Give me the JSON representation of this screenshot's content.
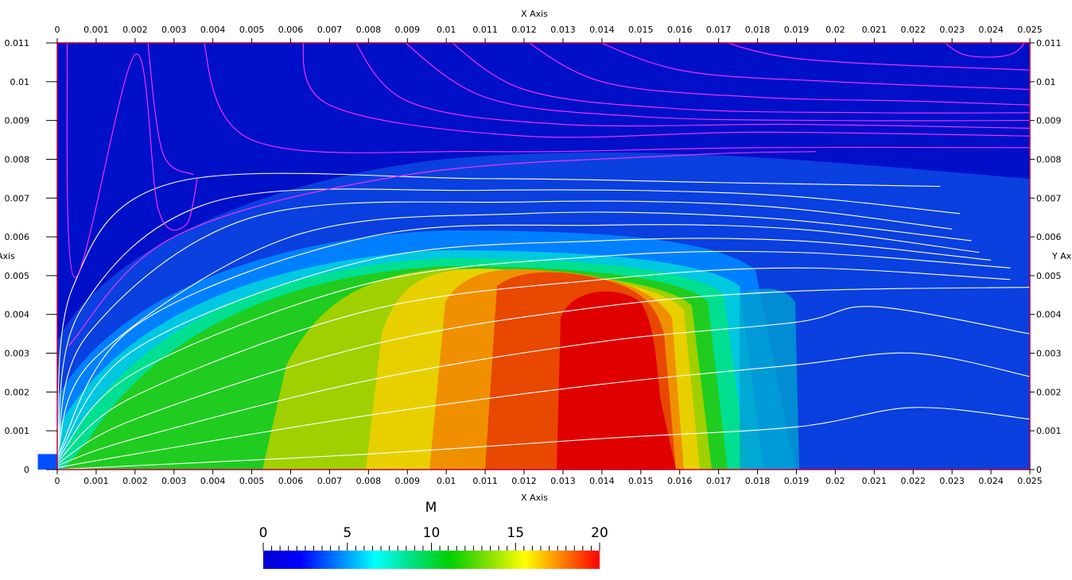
{
  "chart_data": {
    "type": "heatmap",
    "title": "",
    "x_axis": {
      "label": "X Axis",
      "range": [
        0,
        0.025
      ],
      "ticks": [
        "0",
        "0.001",
        "0.002",
        "0.003",
        "0.004",
        "0.005",
        "0.006",
        "0.007",
        "0.008",
        "0.009",
        "0.01",
        "0.011",
        "0.012",
        "0.013",
        "0.014",
        "0.015",
        "0.016",
        "0.017",
        "0.018",
        "0.019",
        "0.02",
        "0.021",
        "0.022",
        "0.023",
        "0.024",
        "0.025"
      ]
    },
    "y_axis": {
      "label_left": "Axis",
      "label_right": "Y Ax",
      "range": [
        0,
        0.011
      ],
      "ticks": [
        "0",
        "0.001",
        "0.002",
        "0.003",
        "0.004",
        "0.005",
        "0.006",
        "0.007",
        "0.008",
        "0.009",
        "0.01",
        "0.011"
      ]
    },
    "inlet": {
      "x_min": -0.0005,
      "x_max": 0,
      "y_max": 0.0004
    },
    "colorbar": {
      "title": "M",
      "range": [
        0,
        20
      ],
      "tick_labels": [
        "0",
        "5",
        "10",
        "15",
        "20"
      ],
      "tick_values": [
        0,
        5,
        10,
        15,
        20
      ],
      "colors": [
        "#0000d0",
        "#0000ff",
        "#0080ff",
        "#00ffff",
        "#00e080",
        "#00d000",
        "#80e000",
        "#ffff00",
        "#ff8000",
        "#ff0000"
      ]
    },
    "field_peak_M": 20,
    "streamlines_white": [
      [
        [
          0,
          0
        ],
        [
          0.002,
          0.0001
        ],
        [
          0.008,
          0.0004
        ],
        [
          0.014,
          0.0008
        ],
        [
          0.019,
          0.0011
        ],
        [
          0.022,
          0.0016
        ],
        [
          0.025,
          0.0013
        ]
      ],
      [
        [
          0,
          5e-05
        ],
        [
          0.002,
          0.0004
        ],
        [
          0.008,
          0.0014
        ],
        [
          0.014,
          0.0022
        ],
        [
          0.019,
          0.0027
        ],
        [
          0.022,
          0.003
        ],
        [
          0.025,
          0.0024
        ]
      ],
      [
        [
          0,
          0.0001
        ],
        [
          0.002,
          0.0008
        ],
        [
          0.008,
          0.0023
        ],
        [
          0.014,
          0.0033
        ],
        [
          0.019,
          0.0038
        ],
        [
          0.021,
          0.0042
        ],
        [
          0.025,
          0.0035
        ]
      ],
      [
        [
          0,
          0.00015
        ],
        [
          0.002,
          0.0013
        ],
        [
          0.008,
          0.0032
        ],
        [
          0.014,
          0.0042
        ],
        [
          0.019,
          0.0046
        ],
        [
          0.025,
          0.0047
        ]
      ],
      [
        [
          0,
          0.0002
        ],
        [
          0.002,
          0.0019
        ],
        [
          0.008,
          0.0041
        ],
        [
          0.014,
          0.0049
        ],
        [
          0.019,
          0.0052
        ],
        [
          0.0245,
          0.0049
        ]
      ],
      [
        [
          0,
          0.00025
        ],
        [
          0.002,
          0.0025
        ],
        [
          0.008,
          0.0048
        ],
        [
          0.014,
          0.0055
        ],
        [
          0.019,
          0.0056
        ],
        [
          0.0245,
          0.0052
        ]
      ],
      [
        [
          0,
          0.0003
        ],
        [
          0.002,
          0.0031
        ],
        [
          0.008,
          0.0054
        ],
        [
          0.014,
          0.0059
        ],
        [
          0.019,
          0.0059
        ],
        [
          0.024,
          0.0054
        ]
      ],
      [
        [
          0,
          0.00035
        ],
        [
          0.002,
          0.0037
        ],
        [
          0.008,
          0.006
        ],
        [
          0.014,
          0.0063
        ],
        [
          0.019,
          0.0062
        ],
        [
          0.0237,
          0.0056
        ]
      ],
      [
        [
          0,
          0.0004
        ],
        [
          0.001,
          0.0029
        ],
        [
          0.006,
          0.006
        ],
        [
          0.012,
          0.0066
        ],
        [
          0.018,
          0.0065
        ],
        [
          0.0235,
          0.0059
        ]
      ],
      [
        [
          0,
          0.0004
        ],
        [
          0.0008,
          0.0035
        ],
        [
          0.005,
          0.0065
        ],
        [
          0.012,
          0.0069
        ],
        [
          0.018,
          0.0068
        ],
        [
          0.023,
          0.0062
        ]
      ],
      [
        [
          0,
          0.0004
        ],
        [
          0.0006,
          0.0041
        ],
        [
          0.004,
          0.0069
        ],
        [
          0.011,
          0.0072
        ],
        [
          0.018,
          0.0071
        ],
        [
          0.0232,
          0.0066
        ]
      ],
      [
        [
          0,
          0.0004
        ],
        [
          0.0004,
          0.0047
        ],
        [
          0.003,
          0.0074
        ],
        [
          0.011,
          0.0075
        ],
        [
          0.017,
          0.0074
        ],
        [
          0.0227,
          0.0073
        ]
      ]
    ],
    "streamlines_magenta": [
      [
        [
          0.0003,
          0.0032
        ],
        [
          0.003,
          0.006
        ],
        [
          0.009,
          0.0076
        ],
        [
          0.016,
          0.0081
        ],
        [
          0.0195,
          0.0082
        ]
      ],
      [
        [
          0.0037,
          0.0113
        ],
        [
          0.005,
          0.0085
        ],
        [
          0.011,
          0.0082
        ],
        [
          0.018,
          0.0083
        ],
        [
          0.025,
          0.0083
        ]
      ],
      [
        [
          0.0063,
          0.0113
        ],
        [
          0.007,
          0.0094
        ],
        [
          0.012,
          0.0086
        ],
        [
          0.018,
          0.0087
        ],
        [
          0.025,
          0.0086
        ]
      ],
      [
        [
          0.0075,
          0.0113
        ],
        [
          0.009,
          0.0095
        ],
        [
          0.013,
          0.0089
        ],
        [
          0.019,
          0.0089
        ],
        [
          0.025,
          0.0088
        ]
      ],
      [
        [
          0.0086,
          0.0113
        ],
        [
          0.011,
          0.0096
        ],
        [
          0.015,
          0.0091
        ],
        [
          0.02,
          0.009
        ],
        [
          0.025,
          0.009
        ]
      ],
      [
        [
          0.0098,
          0.0113
        ],
        [
          0.012,
          0.0098
        ],
        [
          0.016,
          0.0093
        ],
        [
          0.021,
          0.0092
        ],
        [
          0.025,
          0.0092
        ]
      ],
      [
        [
          0.0117,
          0.0113
        ],
        [
          0.014,
          0.01
        ],
        [
          0.018,
          0.0096
        ],
        [
          0.022,
          0.0095
        ],
        [
          0.025,
          0.0094
        ]
      ],
      [
        [
          0.0133,
          0.0113
        ],
        [
          0.016,
          0.0103
        ],
        [
          0.02,
          0.01
        ],
        [
          0.025,
          0.0098
        ]
      ],
      [
        [
          0.0164,
          0.0113
        ],
        [
          0.019,
          0.0106
        ],
        [
          0.025,
          0.0103
        ]
      ],
      [
        [
          0.0225,
          0.0113
        ],
        [
          0.0233,
          0.0107
        ],
        [
          0.0245,
          0.0107
        ],
        [
          0.025,
          0.0112
        ]
      ],
      [
        [
          0.00025,
          0.0112
        ],
        [
          0.00045,
          0.00495
        ],
        [
          0.002,
          0.0107
        ],
        [
          0.0026,
          0.0067
        ],
        [
          0.0033,
          0.0063
        ],
        [
          0.0036,
          0.0075
        ]
      ],
      [
        [
          0.0023,
          0.0113
        ],
        [
          0.0027,
          0.0082
        ],
        [
          0.0035,
          0.0076
        ]
      ]
    ]
  }
}
